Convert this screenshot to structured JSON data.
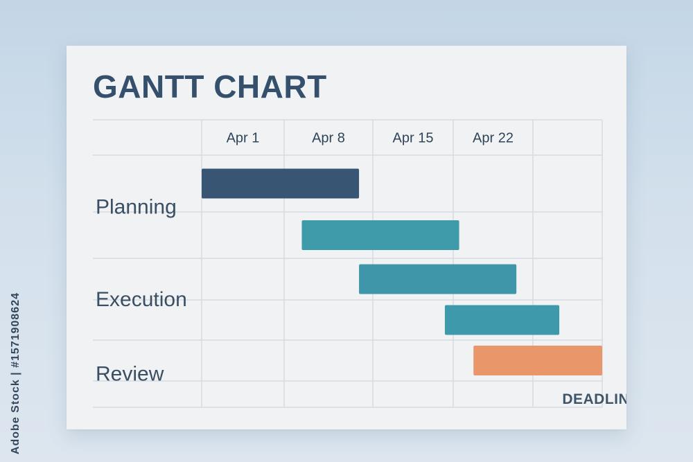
{
  "chart_data": {
    "type": "gantt",
    "title": "GANTT CHART",
    "xlabel": "",
    "ylabel": "",
    "grid": true,
    "x_unit": "days from Apr 1",
    "xlim": [
      0,
      28
    ],
    "ticks": [
      {
        "label": "Apr 1",
        "value": 0
      },
      {
        "label": "Apr 8",
        "value": 7
      },
      {
        "label": "Apr 15",
        "value": 14
      },
      {
        "label": "Apr 22",
        "value": 21
      }
    ],
    "task_groups": [
      {
        "label": "Planning",
        "rows": [
          0,
          1
        ]
      },
      {
        "label": "Execution",
        "rows": [
          2,
          3
        ]
      },
      {
        "label": "Review",
        "rows": [
          4,
          5
        ]
      }
    ],
    "row_count": 6,
    "bars": [
      {
        "row": 0,
        "start": 0,
        "end": 11,
        "color": "#385674"
      },
      {
        "row": 1,
        "start": 7,
        "end": 18,
        "color": "#3f9aaa"
      },
      {
        "row": 2,
        "start": 11,
        "end": 22,
        "color": "#3f96a9"
      },
      {
        "row": 3,
        "start": 17,
        "end": 25,
        "color": "#3e99ab"
      },
      {
        "row": 4,
        "start": 19,
        "end": 28,
        "color": "#e9966a"
      }
    ],
    "annotations": [
      {
        "text": "DEADLINE",
        "x": 28,
        "row": 5
      }
    ]
  },
  "watermark": "Adobe Stock | #1571908624"
}
